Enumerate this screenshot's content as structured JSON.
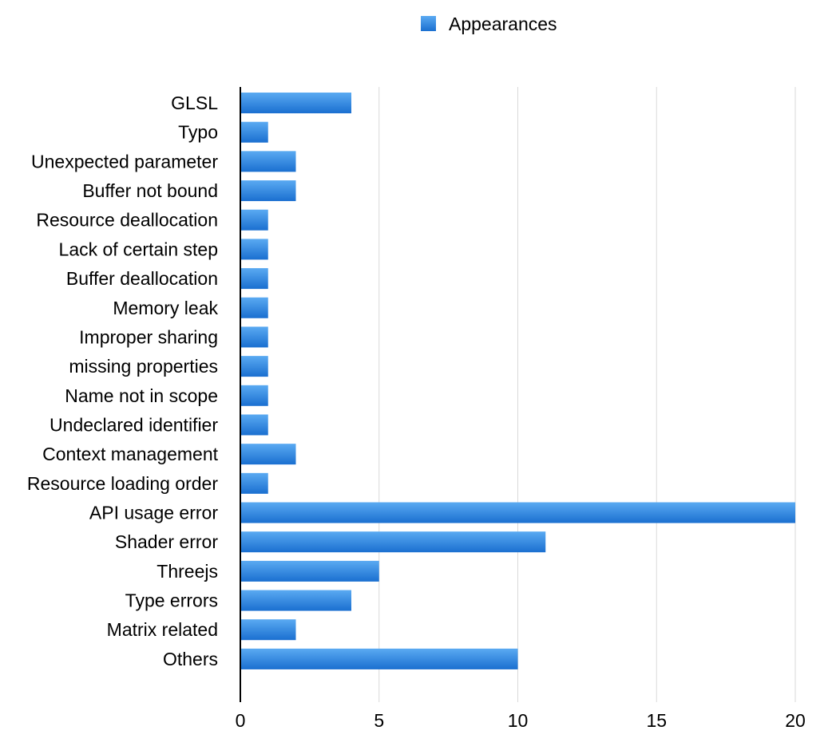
{
  "colors": {
    "bar_top": "#5aaaf2",
    "bar_bottom": "#1a6fd0",
    "grid": "#d9d9d9",
    "axis": "#000000"
  },
  "chart_data": {
    "type": "bar",
    "orientation": "horizontal",
    "title": "",
    "xlabel": "",
    "ylabel": "",
    "xlim": [
      0,
      20
    ],
    "x_ticks": [
      0,
      5,
      10,
      15,
      20
    ],
    "grid": true,
    "legend": {
      "position": "top-center"
    },
    "categories": [
      "GLSL",
      "Typo",
      "Unexpected parameter",
      "Buffer not bound",
      "Resource deallocation",
      "Lack of certain step",
      "Buffer deallocation",
      "Memory leak",
      "Improper sharing",
      "missing properties",
      "Name not in scope",
      "Undeclared identifier",
      "Context management",
      "Resource loading order",
      "API usage error",
      "Shader error",
      "Threejs",
      "Type errors",
      "Matrix related",
      "Others"
    ],
    "series": [
      {
        "name": "Appearances",
        "values": [
          4,
          1,
          2,
          2,
          1,
          1,
          1,
          1,
          1,
          1,
          1,
          1,
          2,
          1,
          20,
          11,
          5,
          4,
          2,
          10
        ]
      }
    ]
  }
}
